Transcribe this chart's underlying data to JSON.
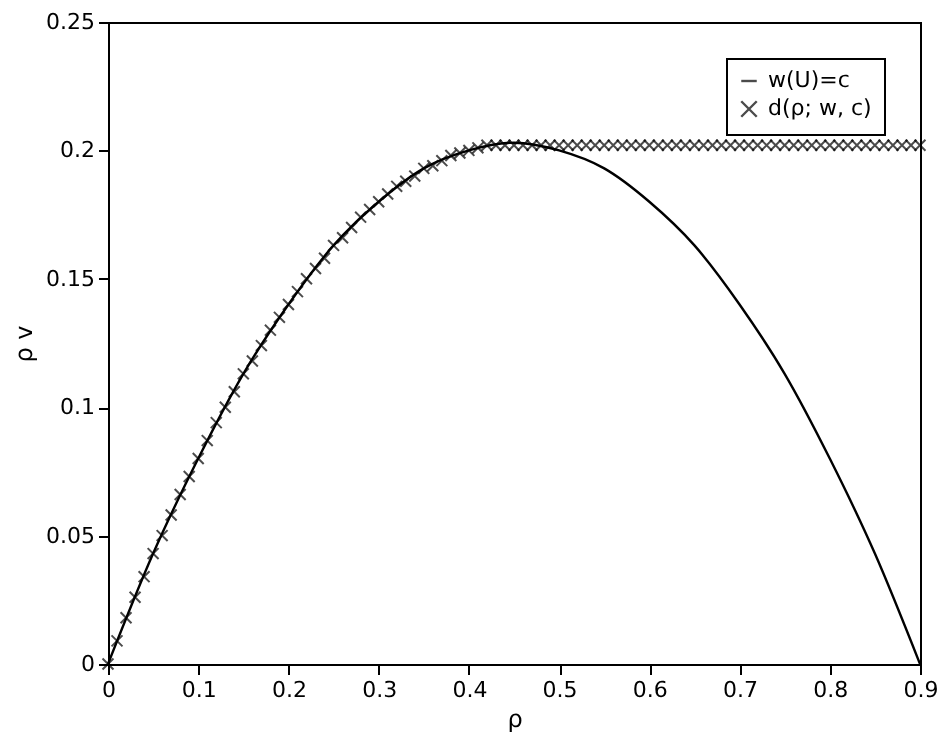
{
  "chart_data": {
    "type": "line",
    "xlabel": "ρ",
    "ylabel": "ρ v",
    "xlim": [
      0,
      0.9
    ],
    "ylim": [
      0,
      0.25
    ],
    "xticks": [
      0,
      0.1,
      0.2,
      0.3,
      0.4,
      0.5,
      0.6,
      0.7,
      0.8,
      0.9
    ],
    "yticks": [
      0,
      0.05,
      0.1,
      0.15,
      0.2,
      0.25
    ],
    "grid": false,
    "legend": "top right",
    "series": [
      {
        "name": "w(U)=c",
        "color": "#000000",
        "line_style": "solid",
        "x": [
          0,
          0.05,
          0.1,
          0.15,
          0.2,
          0.25,
          0.3,
          0.35,
          0.4,
          0.45,
          0.5,
          0.55,
          0.6,
          0.65,
          0.7,
          0.75,
          0.8,
          0.85,
          0.9
        ],
        "values": [
          0,
          0.043,
          0.08,
          0.113,
          0.14,
          0.163,
          0.18,
          0.193,
          0.2,
          0.203,
          0.2,
          0.193,
          0.18,
          0.163,
          0.14,
          0.113,
          0.08,
          0.043,
          0
        ]
      },
      {
        "name": "d(ρ; w, c)",
        "type": "scatter",
        "color": "#000000",
        "marker": "cross",
        "x": [
          0,
          0.01,
          0.02,
          0.03,
          0.04,
          0.05,
          0.06,
          0.07,
          0.08,
          0.09,
          0.1,
          0.11,
          0.12,
          0.13,
          0.14,
          0.15,
          0.16,
          0.17,
          0.18,
          0.19,
          0.2,
          0.21,
          0.22,
          0.23,
          0.24,
          0.25,
          0.26,
          0.27,
          0.28,
          0.29,
          0.3,
          0.31,
          0.32,
          0.33,
          0.34,
          0.35,
          0.36,
          0.37,
          0.38,
          0.39,
          0.4,
          0.41,
          0.42,
          0.43,
          0.44,
          0.45,
          0.46,
          0.47,
          0.48,
          0.49,
          0.5,
          0.51,
          0.52,
          0.53,
          0.54,
          0.55,
          0.56,
          0.57,
          0.58,
          0.59,
          0.6,
          0.61,
          0.62,
          0.63,
          0.64,
          0.65,
          0.66,
          0.67,
          0.68,
          0.69,
          0.7,
          0.71,
          0.72,
          0.73,
          0.74,
          0.75,
          0.76,
          0.77,
          0.78,
          0.79,
          0.8,
          0.81,
          0.82,
          0.83,
          0.84,
          0.85,
          0.86,
          0.87,
          0.88,
          0.89,
          0.9
        ],
        "values": [
          0,
          0.009,
          0.018,
          0.026,
          0.034,
          0.043,
          0.05,
          0.058,
          0.066,
          0.073,
          0.08,
          0.087,
          0.094,
          0.1,
          0.106,
          0.113,
          0.118,
          0.124,
          0.13,
          0.135,
          0.14,
          0.145,
          0.15,
          0.154,
          0.158,
          0.163,
          0.166,
          0.17,
          0.174,
          0.177,
          0.18,
          0.183,
          0.186,
          0.188,
          0.19,
          0.193,
          0.194,
          0.196,
          0.198,
          0.199,
          0.2,
          0.201,
          0.202,
          0.202,
          0.202,
          0.202,
          0.202,
          0.202,
          0.202,
          0.202,
          0.202,
          0.202,
          0.202,
          0.202,
          0.202,
          0.202,
          0.202,
          0.202,
          0.202,
          0.202,
          0.202,
          0.202,
          0.202,
          0.202,
          0.202,
          0.202,
          0.202,
          0.202,
          0.202,
          0.202,
          0.202,
          0.202,
          0.202,
          0.202,
          0.202,
          0.202,
          0.202,
          0.202,
          0.202,
          0.202,
          0.202,
          0.202,
          0.202,
          0.202,
          0.202,
          0.202,
          0.202,
          0.202,
          0.202,
          0.202,
          0.202
        ]
      }
    ]
  }
}
